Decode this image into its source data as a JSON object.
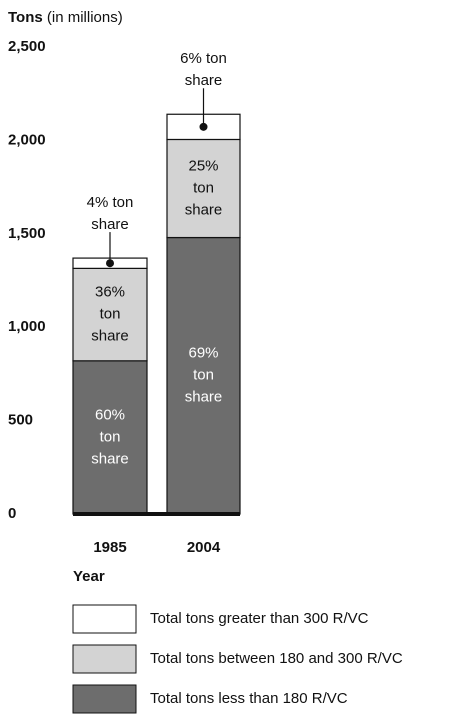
{
  "chart_data": {
    "type": "stacked_bar",
    "y_label_bold": "Tons",
    "y_label_rest": "(in millions)",
    "x_label": "Year",
    "categories": [
      "1985",
      "2004"
    ],
    "series": [
      {
        "name": "Total tons less than 180 R/VC",
        "color": "#6d6d6d",
        "text_color": "#ffffff",
        "values": [
          820,
          1480
        ],
        "share_labels": [
          [
            "60%",
            "ton",
            "share"
          ],
          [
            "69%",
            "ton",
            "share"
          ]
        ]
      },
      {
        "name": "Total tons between 180 and 300 R/VC",
        "color": "#d3d3d3",
        "text_color": "#111111",
        "values": [
          495,
          525
        ],
        "share_labels": [
          [
            "36%",
            "ton",
            "share"
          ],
          [
            "25%",
            "ton",
            "share"
          ]
        ]
      },
      {
        "name": "Total tons greater than 300 R/VC",
        "color": "#ffffff",
        "text_color": "#111111",
        "values": [
          55,
          135
        ],
        "share_labels": [
          [
            "4% ton",
            "share"
          ],
          [
            "6% ton",
            "share"
          ]
        ]
      }
    ],
    "ylim": [
      0,
      2500
    ],
    "yticks": [
      0,
      500,
      {
        "value": 1000,
        "label": "1,000"
      },
      {
        "value": 1500,
        "label": "1,500"
      },
      {
        "value": 2000,
        "label": "2,000"
      },
      {
        "value": 2500,
        "label": "2,500"
      }
    ],
    "legend_order": [
      2,
      1,
      0
    ]
  }
}
